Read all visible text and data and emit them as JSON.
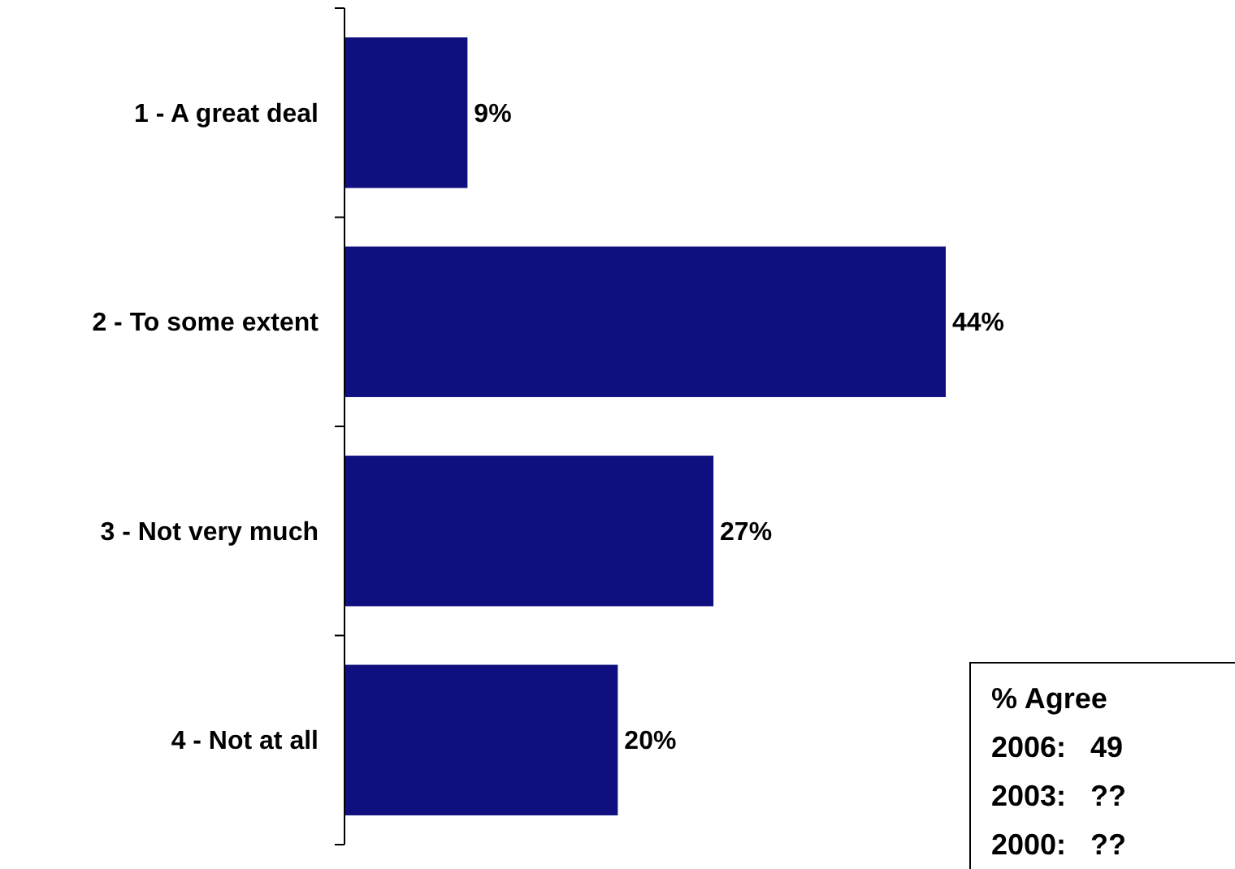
{
  "chart_data": {
    "type": "bar",
    "orientation": "horizontal",
    "categories": [
      "1 - A great deal",
      "2 - To some extent",
      "3 - Not very much",
      "4 - Not at all"
    ],
    "values": [
      9,
      44,
      27,
      20
    ],
    "color": "#0f0f80",
    "value_labels": [
      "9%",
      "44%",
      "27%",
      "20%"
    ],
    "annotations": [
      "% Agree",
      "2006:   49",
      "2003:   ??",
      "2000:   ??"
    ]
  }
}
